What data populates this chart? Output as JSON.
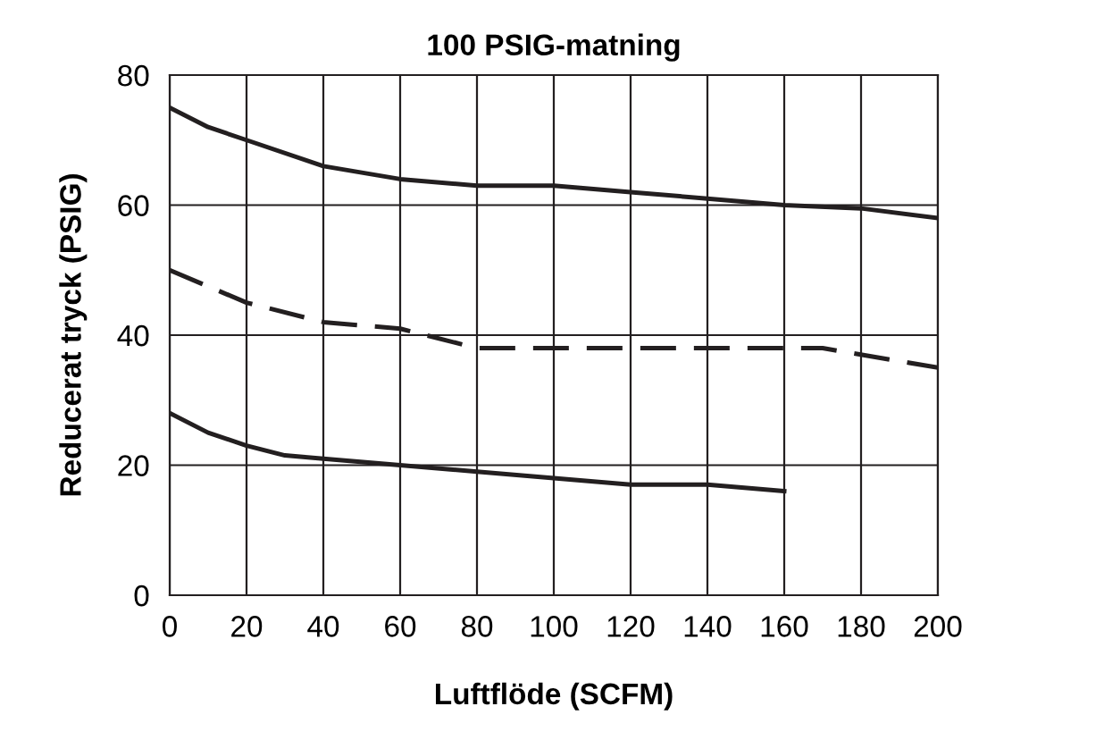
{
  "chart_data": {
    "type": "line",
    "title": "100 PSIG-matning",
    "xlabel": "Luftflöde (SCFM)",
    "ylabel": "Reducerat tryck (PSIG)",
    "series": [
      {
        "color": "#231f20",
        "line_style": "solid",
        "x": [
          0,
          10,
          20,
          40,
          60,
          80,
          100,
          120,
          140,
          160,
          180,
          200
        ],
        "values": [
          75,
          72,
          70,
          66,
          64,
          63,
          63,
          62,
          61,
          60,
          59.5,
          58
        ]
      },
      {
        "color": "#231f20",
        "line_style": "dashed",
        "x": [
          0,
          20,
          40,
          60,
          80,
          170,
          200
        ],
        "values": [
          50,
          45,
          42,
          41,
          38,
          38,
          35
        ]
      },
      {
        "color": "#231f20",
        "line_style": "solid",
        "x": [
          0,
          10,
          20,
          30,
          40,
          60,
          80,
          100,
          120,
          140,
          160
        ],
        "values": [
          28,
          25,
          23,
          21.5,
          21,
          20,
          19,
          18,
          17,
          17,
          16
        ]
      }
    ],
    "xlim": [
      0,
      200
    ],
    "xticks": [
      0,
      20,
      40,
      60,
      80,
      100,
      120,
      140,
      160,
      180,
      200
    ],
    "ylim": [
      0,
      80
    ],
    "yticks": [
      0,
      20,
      40,
      60,
      80
    ],
    "grid": true
  }
}
